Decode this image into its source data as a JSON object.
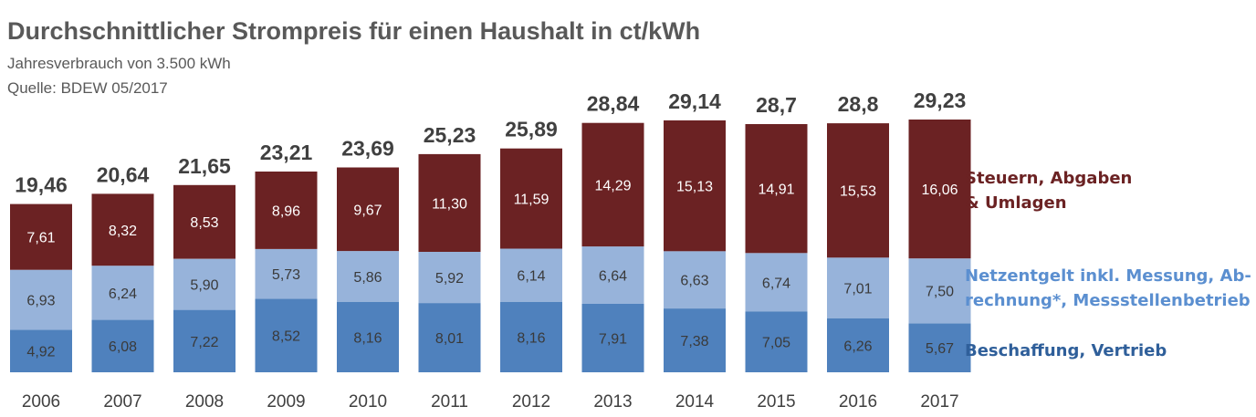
{
  "header": {
    "title": "Durchschnittlicher Strompreis für einen Haushalt in ct/kWh",
    "subtitle": "Jahresverbrauch  von  3.500  kWh",
    "source": "Quelle:  BDEW 05/2017"
  },
  "colors": {
    "steuern": "#6b2223",
    "netz": "#97b3da",
    "beschaffung": "#4f81bd",
    "legend_steuern": "#6b2223",
    "legend_netz": "#5b8fd0",
    "legend_beschaffung": "#2f5f9a"
  },
  "chart_data": {
    "type": "bar",
    "stacked": true,
    "title": "Durchschnittlicher Strompreis für einen Haushalt in ct/kWh",
    "categories": [
      "2006",
      "2007",
      "2008",
      "2009",
      "2010",
      "2011",
      "2012",
      "2013",
      "2014",
      "2015",
      "2016",
      "2017"
    ],
    "series": [
      {
        "key": "beschaffung",
        "name_lines": [
          "Beschaffung, Vertrieb"
        ],
        "values": [
          4.92,
          6.08,
          7.22,
          8.52,
          8.16,
          8.01,
          8.16,
          7.91,
          7.38,
          7.05,
          6.26,
          5.67
        ],
        "labels": [
          "4,92",
          "6,08",
          "7,22",
          "8,52",
          "8,16",
          "8,01",
          "8,16",
          "7,91",
          "7,38",
          "7,05",
          "6,26",
          "5,67"
        ]
      },
      {
        "key": "netz",
        "name_lines": [
          "Netzentgelt inkl. Messung, Ab-",
          "rechnung*, Messstellenbetrieb"
        ],
        "values": [
          6.93,
          6.24,
          5.9,
          5.73,
          5.86,
          5.92,
          6.14,
          6.64,
          6.63,
          6.74,
          7.01,
          7.5
        ],
        "labels": [
          "6,93",
          "6,24",
          "5,90",
          "5,73",
          "5,86",
          "5,92",
          "6,14",
          "6,64",
          "6,63",
          "6,74",
          "7,01",
          "7,50"
        ]
      },
      {
        "key": "steuern",
        "name_lines": [
          "Steuern, Abgaben",
          "& Umlagen"
        ],
        "values": [
          7.61,
          8.32,
          8.53,
          8.96,
          9.67,
          11.3,
          11.59,
          14.29,
          15.13,
          14.91,
          15.53,
          16.06
        ],
        "labels": [
          "7,61",
          "8,32",
          "8,53",
          "8,96",
          "9,67",
          "11,30",
          "11,59",
          "14,29",
          "15,13",
          "14,91",
          "15,53",
          "16,06"
        ]
      }
    ],
    "totals": [
      19.46,
      20.64,
      21.65,
      23.21,
      23.69,
      25.23,
      25.89,
      28.84,
      29.14,
      28.7,
      28.8,
      29.23
    ],
    "total_labels": [
      "19,46",
      "20,64",
      "21,65",
      "23,21",
      "23,69",
      "25,23",
      "25,89",
      "28,84",
      "29,14",
      "28,7",
      "28,8",
      "29,23"
    ],
    "ylim": [
      0,
      29.23
    ],
    "grid": false,
    "legend_position": "right"
  }
}
